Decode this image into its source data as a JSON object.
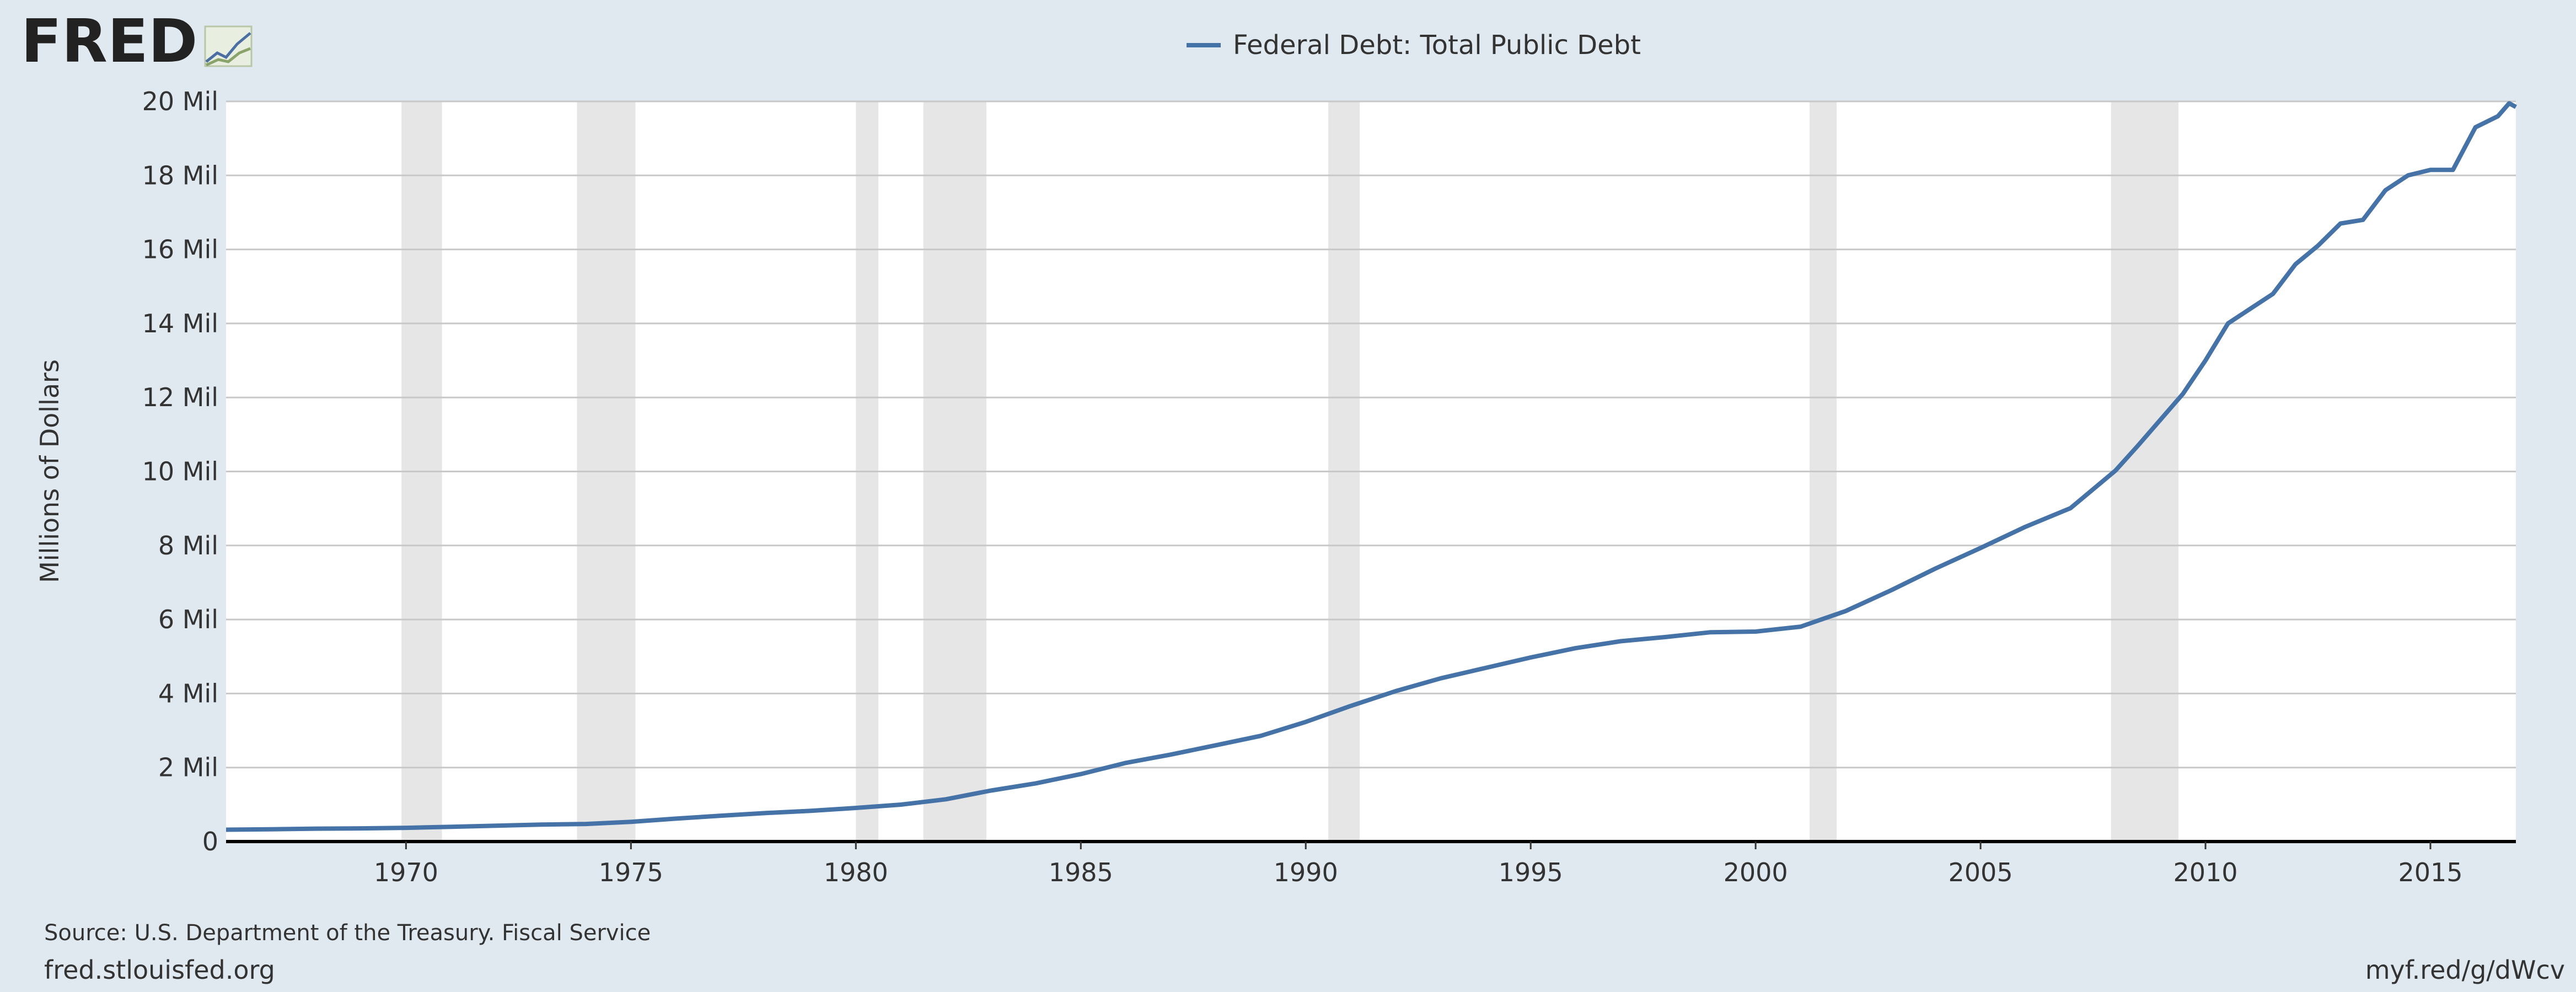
{
  "branding": {
    "logo": "FRED"
  },
  "chart_data": {
    "type": "line",
    "title": "",
    "legend": [
      "Federal Debt: Total Public Debt"
    ],
    "legend_position": "top-center",
    "ylabel": "Millions of Dollars",
    "xlabel": "",
    "xlim": [
      1966,
      2016.9
    ],
    "ylim": [
      0,
      20000000
    ],
    "grid": true,
    "yticks": [
      {
        "value": 0,
        "label": "0"
      },
      {
        "value": 2000000,
        "label": "2 Mil"
      },
      {
        "value": 4000000,
        "label": "4 Mil"
      },
      {
        "value": 6000000,
        "label": "6 Mil"
      },
      {
        "value": 8000000,
        "label": "8 Mil"
      },
      {
        "value": 10000000,
        "label": "10 Mil"
      },
      {
        "value": 12000000,
        "label": "12 Mil"
      },
      {
        "value": 14000000,
        "label": "14 Mil"
      },
      {
        "value": 16000000,
        "label": "16 Mil"
      },
      {
        "value": 18000000,
        "label": "18 Mil"
      },
      {
        "value": 20000000,
        "label": "20 Mil"
      }
    ],
    "xticks": [
      {
        "value": 1970,
        "label": "1970"
      },
      {
        "value": 1975,
        "label": "1975"
      },
      {
        "value": 1980,
        "label": "1980"
      },
      {
        "value": 1985,
        "label": "1985"
      },
      {
        "value": 1990,
        "label": "1990"
      },
      {
        "value": 1995,
        "label": "1995"
      },
      {
        "value": 2000,
        "label": "2000"
      },
      {
        "value": 2005,
        "label": "2005"
      },
      {
        "value": 2010,
        "label": "2010"
      },
      {
        "value": 2015,
        "label": "2015"
      }
    ],
    "recessions": [
      [
        1969.9,
        1970.8
      ],
      [
        1973.8,
        1975.1
      ],
      [
        1980.0,
        1980.5
      ],
      [
        1981.5,
        1982.9
      ],
      [
        1990.5,
        1991.2
      ],
      [
        2001.2,
        2001.8
      ],
      [
        2007.9,
        2009.4
      ]
    ],
    "series": [
      {
        "name": "Federal Debt: Total Public Debt",
        "color": "#4572a7",
        "points": [
          [
            1966.0,
            320000
          ],
          [
            1967.0,
            330000
          ],
          [
            1968.0,
            348000
          ],
          [
            1969.0,
            356000
          ],
          [
            1970.0,
            371000
          ],
          [
            1971.0,
            398000
          ],
          [
            1972.0,
            427000
          ],
          [
            1973.0,
            458000
          ],
          [
            1974.0,
            475000
          ],
          [
            1975.0,
            533000
          ],
          [
            1976.0,
            620000
          ],
          [
            1977.0,
            699000
          ],
          [
            1978.0,
            772000
          ],
          [
            1979.0,
            829000
          ],
          [
            1980.0,
            908000
          ],
          [
            1981.0,
            998000
          ],
          [
            1982.0,
            1142000
          ],
          [
            1983.0,
            1377000
          ],
          [
            1984.0,
            1572000
          ],
          [
            1985.0,
            1823000
          ],
          [
            1986.0,
            2125000
          ],
          [
            1987.0,
            2350000
          ],
          [
            1988.0,
            2602000
          ],
          [
            1989.0,
            2857000
          ],
          [
            1990.0,
            3233000
          ],
          [
            1991.0,
            3665000
          ],
          [
            1992.0,
            4065000
          ],
          [
            1993.0,
            4411000
          ],
          [
            1994.0,
            4693000
          ],
          [
            1995.0,
            4974000
          ],
          [
            1996.0,
            5225000
          ],
          [
            1997.0,
            5413000
          ],
          [
            1998.0,
            5526000
          ],
          [
            1999.0,
            5656000
          ],
          [
            2000.0,
            5674000
          ],
          [
            2001.0,
            5807000
          ],
          [
            2002.0,
            6228000
          ],
          [
            2003.0,
            6783000
          ],
          [
            2004.0,
            7379000
          ],
          [
            2005.0,
            7933000
          ],
          [
            2006.0,
            8507000
          ],
          [
            2007.0,
            9008000
          ],
          [
            2008.0,
            10025000
          ],
          [
            2008.5,
            10700000
          ],
          [
            2009.0,
            11400000
          ],
          [
            2009.5,
            12100000
          ],
          [
            2010.0,
            13000000
          ],
          [
            2010.5,
            14000000
          ],
          [
            2011.0,
            14400000
          ],
          [
            2011.5,
            14800000
          ],
          [
            2012.0,
            15600000
          ],
          [
            2012.5,
            16100000
          ],
          [
            2013.0,
            16700000
          ],
          [
            2013.5,
            16800000
          ],
          [
            2014.0,
            17600000
          ],
          [
            2014.5,
            18000000
          ],
          [
            2015.0,
            18150000
          ],
          [
            2015.5,
            18150000
          ],
          [
            2016.0,
            19300000
          ],
          [
            2016.5,
            19600000
          ],
          [
            2016.75,
            19950000
          ],
          [
            2016.9,
            19850000
          ]
        ]
      }
    ]
  },
  "footer": {
    "source": "Source: U.S. Department of the Treasury. Fiscal Service",
    "site": "fred.stlouisfed.org",
    "short_url": "myf.red/g/dWcv"
  }
}
